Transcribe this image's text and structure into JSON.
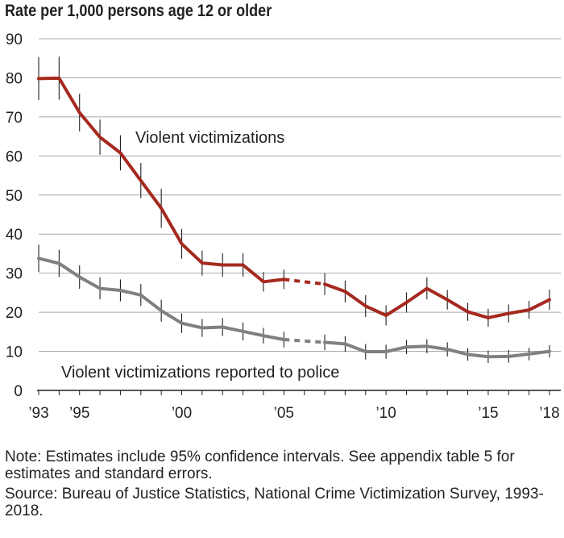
{
  "chart_data": {
    "type": "line",
    "title": "Rate per 1,000 persons age 12 or older",
    "ylim": [
      0,
      90
    ],
    "yticks": [
      0,
      10,
      20,
      30,
      40,
      50,
      60,
      70,
      80,
      90
    ],
    "xlim": [
      1993,
      2018
    ],
    "xticks": [
      {
        "value": 1993,
        "label": "’93"
      },
      {
        "value": 1995,
        "label": "’95"
      },
      {
        "value": 2000,
        "label": "’00"
      },
      {
        "value": 2005,
        "label": "’05"
      },
      {
        "value": 2010,
        "label": "’10"
      },
      {
        "value": 2015,
        "label": "’15"
      },
      {
        "value": 2018,
        "label": "’18"
      }
    ],
    "grid": "horizontal",
    "dashed_segment": [
      2005,
      2007
    ],
    "series": [
      {
        "name": "Violent victimizations",
        "color": "#a5291e",
        "x": [
          1993,
          1994,
          1995,
          1996,
          1997,
          1998,
          1999,
          2000,
          2001,
          2002,
          2003,
          2004,
          2005,
          2007,
          2008,
          2009,
          2010,
          2011,
          2012,
          2013,
          2014,
          2015,
          2016,
          2017,
          2018
        ],
        "y": [
          79.8,
          79.9,
          71.1,
          64.8,
          60.8,
          53.7,
          46.6,
          37.5,
          32.6,
          32.1,
          32.1,
          27.8,
          28.4,
          27.2,
          25.3,
          21.6,
          19.2,
          22.5,
          26.1,
          23.2,
          20.1,
          18.6,
          19.7,
          20.6,
          23.2
        ],
        "ci": [
          5.5,
          5.5,
          4.8,
          4.5,
          4.5,
          4.5,
          5.0,
          3.8,
          3.2,
          3.0,
          3.0,
          2.5,
          2.5,
          2.8,
          2.8,
          2.8,
          2.6,
          2.6,
          2.8,
          2.5,
          2.3,
          2.3,
          2.3,
          2.3,
          2.6
        ]
      },
      {
        "name": "Violent victimizations reported to police",
        "color": "#808080",
        "x": [
          1993,
          1994,
          1995,
          1996,
          1997,
          1998,
          1999,
          2000,
          2001,
          2002,
          2003,
          2004,
          2005,
          2007,
          2008,
          2009,
          2010,
          2011,
          2012,
          2013,
          2014,
          2015,
          2016,
          2017,
          2018
        ],
        "y": [
          33.8,
          32.5,
          29.0,
          26.1,
          25.6,
          24.4,
          20.4,
          17.2,
          16.0,
          16.2,
          15.1,
          14.0,
          13.0,
          12.3,
          11.9,
          9.9,
          9.9,
          11.1,
          11.3,
          10.5,
          9.2,
          8.6,
          8.7,
          9.3,
          10.0
        ],
        "ci": [
          3.5,
          3.5,
          3.0,
          2.8,
          2.8,
          2.8,
          2.8,
          2.5,
          2.3,
          2.3,
          2.3,
          2.0,
          2.0,
          2.0,
          2.0,
          2.0,
          1.8,
          1.8,
          1.8,
          1.8,
          1.6,
          1.6,
          1.6,
          1.6,
          1.6
        ]
      }
    ]
  },
  "note": "Note: Estimates include 95% confidence intervals. See appendix table 5 for estimates and standard errors.",
  "source": "Source: Bureau of Justice Statistics, National Crime Victimization Survey, 1993-2018."
}
